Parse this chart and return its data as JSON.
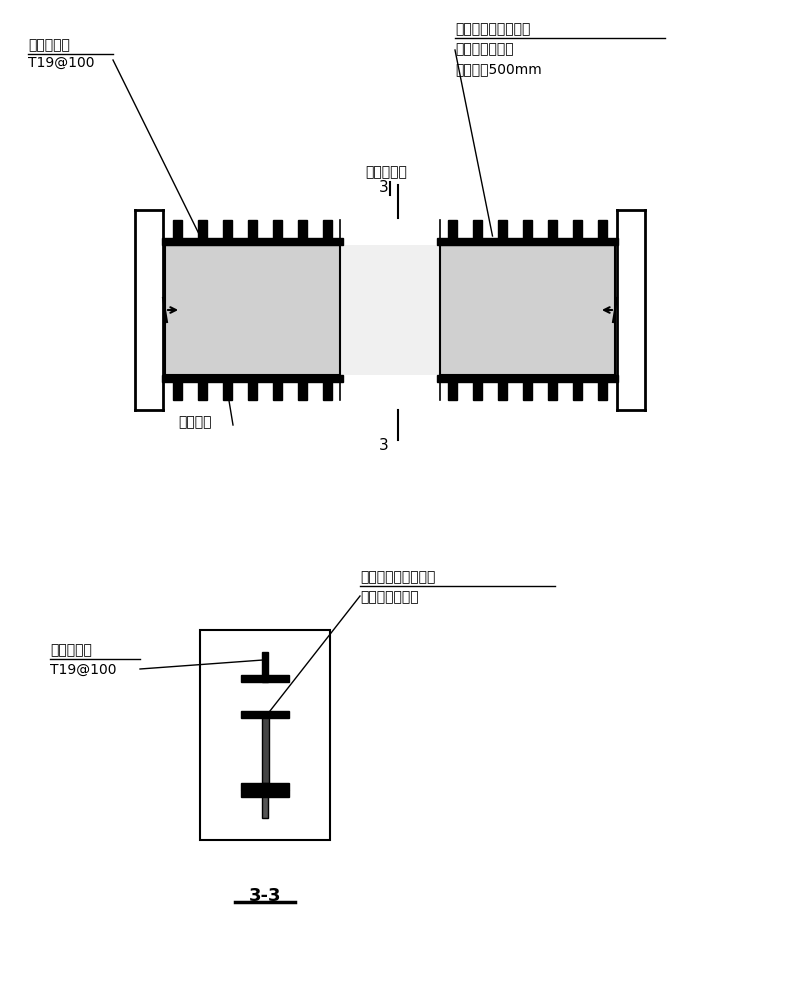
{
  "black": "#000000",
  "white": "#ffffff",
  "gray_slab": "#d0d0d0",
  "gray_gap": "#e8e8e8",
  "top_diagram": {
    "label_top_left_line1": "圆柱头焊钉",
    "label_top_left_line2": "Т19@100",
    "label_top_right_line1": "底板后浇带传力型钑",
    "label_top_right_line2": "热扎普通工字钑",
    "label_top_right_line3": "伸入板児500mm",
    "label_center_top": "后浇带宽度",
    "label_bottom_left": "底板钉筋",
    "section_mark_top": "3",
    "section_mark_bottom": "3"
  },
  "bottom_diagram": {
    "label_left_line1": "圆柱头焊钉",
    "label_left_line2": "Т19@100",
    "label_right_line1": "楼板后浇带传力型钑",
    "label_right_line2": "热扎普通工字钑",
    "section_label": "3-3"
  }
}
